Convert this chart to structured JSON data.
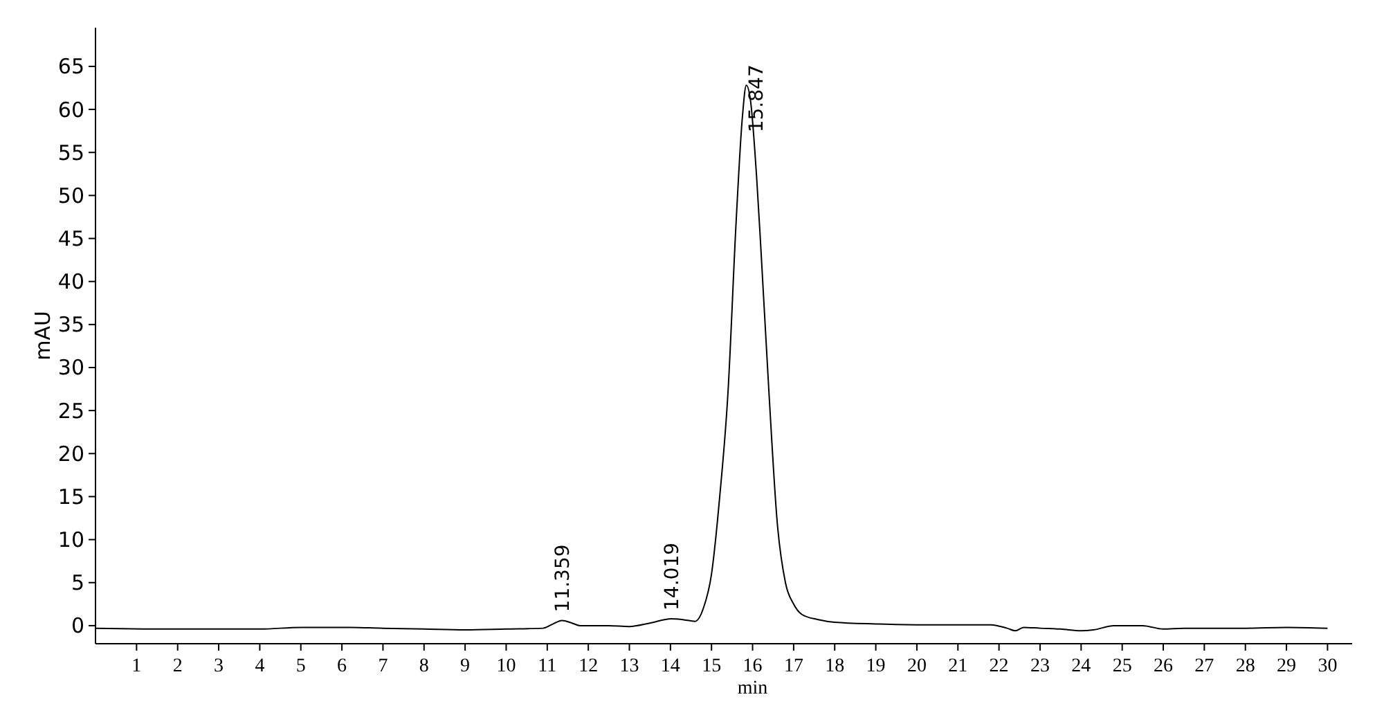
{
  "chart_data": {
    "type": "line",
    "xlabel": "min",
    "ylabel": "mAU",
    "xlim": [
      0,
      30.6
    ],
    "ylim": [
      -2.1,
      69.5
    ],
    "xticks": [
      1,
      2,
      3,
      4,
      5,
      6,
      7,
      8,
      9,
      10,
      11,
      12,
      13,
      14,
      15,
      16,
      17,
      18,
      19,
      20,
      21,
      22,
      23,
      24,
      25,
      26,
      27,
      28,
      29,
      30
    ],
    "yticks": [
      0,
      5,
      10,
      15,
      20,
      25,
      30,
      35,
      40,
      45,
      50,
      55,
      60,
      65
    ],
    "grid": false,
    "marker": "none",
    "line_style": "solid",
    "annotations": [
      {
        "text": "11.359",
        "x": 11.359,
        "y": 0.6
      },
      {
        "text": "14.019",
        "x": 14.019,
        "y": 0.8
      },
      {
        "text": "15.847",
        "x": 15.847,
        "y": 62.8
      }
    ],
    "series": [
      {
        "color": "#000000",
        "x": [
          0,
          2,
          4,
          5,
          6,
          7,
          8,
          9,
          10,
          10.9,
          11.1,
          11.359,
          11.6,
          11.8,
          12.5,
          13,
          13.5,
          14.019,
          14.3,
          14.6,
          14.8,
          15,
          15.2,
          15.4,
          15.6,
          15.75,
          15.847,
          15.95,
          16.1,
          16.2,
          16.4,
          16.6,
          16.8,
          17,
          17.2,
          17.6,
          18,
          19,
          20,
          21,
          21.8,
          22.2,
          22.4,
          22.6,
          23,
          23.5,
          24,
          24.3,
          24.8,
          25.5,
          26,
          26.5,
          28,
          29,
          30
        ],
        "values": [
          -0.3,
          -0.4,
          -0.4,
          -0.2,
          -0.2,
          -0.3,
          -0.4,
          -0.5,
          -0.4,
          -0.3,
          0.1,
          0.6,
          0.3,
          0,
          0,
          -0.1,
          0.3,
          0.8,
          0.7,
          0.5,
          2,
          6,
          15,
          27,
          47,
          59,
          62.8,
          61,
          52,
          44,
          27,
          12,
          5,
          2.5,
          1.3,
          0.7,
          0.4,
          0.2,
          0.1,
          0.1,
          0.1,
          -0.3,
          -0.6,
          -0.2,
          -0.3,
          -0.4,
          -0.6,
          -0.5,
          0,
          0,
          -0.4,
          -0.3,
          -0.3,
          -0.2,
          -0.3
        ]
      }
    ]
  }
}
